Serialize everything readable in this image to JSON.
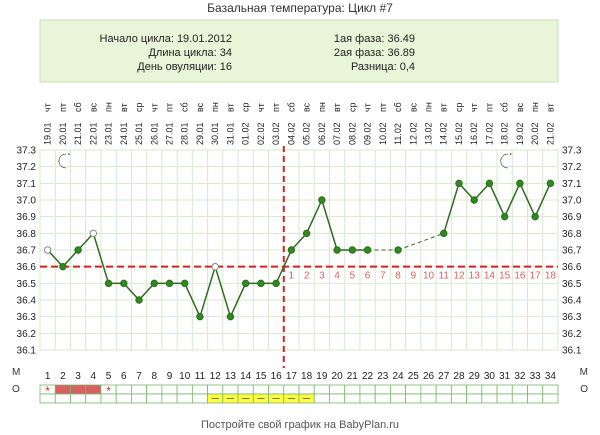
{
  "title": "Базальная температура: Цикл #7",
  "info": {
    "left": [
      {
        "label": "Начало цикла:",
        "value": "19.01.2012"
      },
      {
        "label": "Длина цикла:",
        "value": "34"
      },
      {
        "label": "День овуляции:",
        "value": "16"
      }
    ],
    "right": [
      {
        "label": "1ая фаза:",
        "value": "36.49"
      },
      {
        "label": "2ая фаза:",
        "value": "36.89"
      },
      {
        "label": "Разница:",
        "value": "0,4"
      }
    ]
  },
  "footer": "Постройте свой график на BabyPlan.ru",
  "mo_labels": [
    "М",
    "О"
  ],
  "colors": {
    "line": "#2e6b1e",
    "point": "#2e8b1e",
    "cover_line": "#d42020",
    "luteal_day": "#e06060",
    "info_bg": "#e8f5d8",
    "grid": "#d8e8d0",
    "menses": "#d96060",
    "discharge": "#ffff40"
  },
  "icons": [
    "moon-icon",
    "moon-icon"
  ],
  "chart_data": {
    "type": "line",
    "ylim": [
      36.1,
      37.3
    ],
    "yticks": [
      "37.3",
      "37.2",
      "37.1",
      "37.0",
      "36.9",
      "36.8",
      "36.7",
      "36.6",
      "36.5",
      "36.4",
      "36.3",
      "36.2",
      "36.1"
    ],
    "dates": [
      "19.01",
      "20.01",
      "21.01",
      "22.01",
      "23.01",
      "24.01",
      "25.01",
      "26.01",
      "27.01",
      "28.01",
      "29.01",
      "30.01",
      "31.01",
      "01.02",
      "02.02",
      "03.02",
      "04.02",
      "05.02",
      "06.02",
      "07.02",
      "08.02",
      "09.02",
      "10.02",
      "11.02",
      "12.02",
      "13.02",
      "14.02",
      "15.02",
      "16.02",
      "17.02",
      "18.02",
      "19.02",
      "20.02",
      "21.02"
    ],
    "weekdays": [
      "чт",
      "пт",
      "сб",
      "вс",
      "пн",
      "вт",
      "ср",
      "чт",
      "пт",
      "сб",
      "вс",
      "пн",
      "вт",
      "ср",
      "чт",
      "пт",
      "сб",
      "вс",
      "пн",
      "вт",
      "ср",
      "чт",
      "пт",
      "сб",
      "вс",
      "пн",
      "вт",
      "ср",
      "чт",
      "пт",
      "сб",
      "вс",
      "пн",
      "вт"
    ],
    "days": [
      1,
      2,
      3,
      4,
      5,
      6,
      7,
      8,
      9,
      10,
      11,
      12,
      13,
      14,
      15,
      16,
      17,
      18,
      19,
      20,
      21,
      22,
      23,
      24,
      25,
      26,
      27,
      28,
      29,
      30,
      31,
      32,
      33,
      34
    ],
    "temps": [
      36.7,
      36.6,
      36.7,
      36.8,
      36.5,
      36.5,
      36.4,
      36.5,
      36.5,
      36.5,
      36.3,
      36.6,
      36.3,
      36.5,
      36.5,
      36.5,
      36.7,
      36.8,
      37.0,
      36.7,
      36.7,
      36.7,
      null,
      36.7,
      null,
      null,
      36.8,
      37.1,
      37.0,
      37.1,
      36.9,
      37.1,
      36.9,
      37.1
    ],
    "open_points": [
      1,
      4,
      12
    ],
    "dashed_segments": [
      [
        22,
        24
      ],
      [
        24,
        27
      ]
    ],
    "coverline": 36.6,
    "ovulation_day": 16,
    "luteal_labels": [
      "1",
      "2",
      "3",
      "4",
      "5",
      "6",
      "7",
      "8",
      "9",
      "10",
      "11",
      "12",
      "13",
      "14",
      "15",
      "16",
      "17",
      "18"
    ],
    "menses_days": [
      2,
      3,
      4
    ],
    "spotting_days": [
      1,
      5
    ],
    "discharge_days": [
      12,
      13,
      14,
      15,
      16,
      17,
      18
    ],
    "moon_days": [
      2,
      31
    ]
  }
}
